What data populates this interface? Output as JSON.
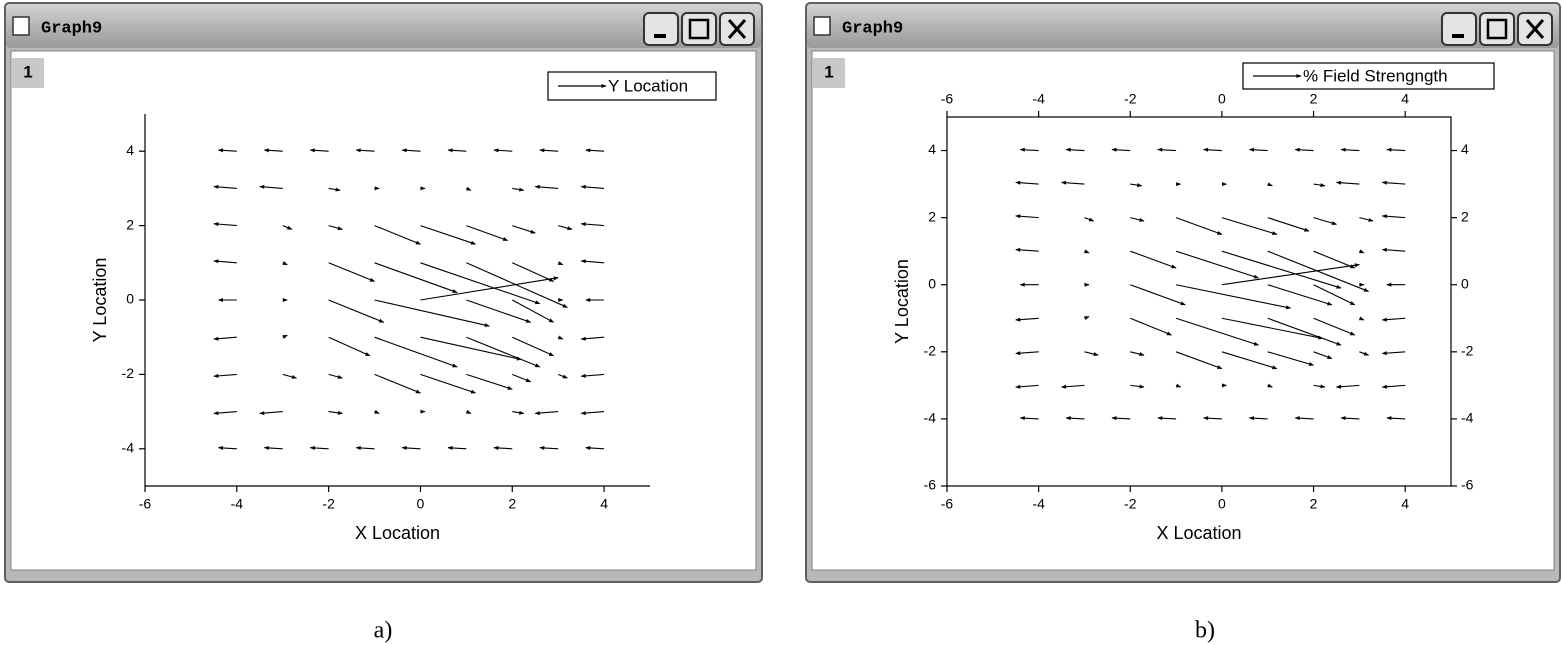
{
  "windows": [
    {
      "title": "Graph9",
      "layer": "1",
      "caption": "a)"
    },
    {
      "title": "Graph9",
      "layer": "1",
      "caption": "b)"
    }
  ],
  "chart_data": [
    {
      "type": "vector",
      "xlabel": "X Location",
      "ylabel": "Y Location",
      "legend": "Y Location",
      "frame": false,
      "xlim": [
        -6,
        5
      ],
      "ylim": [
        -5,
        5
      ],
      "xticks": [
        -6,
        -4,
        -2,
        0,
        2,
        4
      ],
      "yticks": [
        -4,
        -2,
        0,
        2,
        4
      ],
      "vectors": [
        [
          -4,
          4,
          -0.4,
          0.03
        ],
        [
          -3,
          4,
          -0.4,
          0.03
        ],
        [
          -2,
          4,
          -0.4,
          0.03
        ],
        [
          -1,
          4,
          -0.4,
          0.03
        ],
        [
          0,
          4,
          -0.4,
          0.03
        ],
        [
          1,
          4,
          -0.4,
          0.03
        ],
        [
          2,
          4,
          -0.4,
          0.03
        ],
        [
          3,
          4,
          -0.4,
          0.03
        ],
        [
          4,
          4,
          -0.4,
          0.03
        ],
        [
          -4,
          3,
          -0.5,
          0.05
        ],
        [
          -3,
          3,
          -0.5,
          0.05
        ],
        [
          -2,
          3,
          0.25,
          -0.05
        ],
        [
          -1,
          3,
          0.1,
          0
        ],
        [
          0,
          3,
          0.1,
          0
        ],
        [
          1,
          3,
          0.1,
          -0.05
        ],
        [
          2,
          3,
          0.25,
          -0.05
        ],
        [
          3,
          3,
          -0.5,
          0.05
        ],
        [
          4,
          3,
          -0.5,
          0.05
        ],
        [
          -4,
          2,
          -0.5,
          0.05
        ],
        [
          -3,
          2,
          0.2,
          -0.1
        ],
        [
          -2,
          2,
          0.3,
          -0.1
        ],
        [
          -1,
          2,
          1,
          -0.5
        ],
        [
          0,
          2,
          1.2,
          -0.5
        ],
        [
          1,
          2,
          0.9,
          -0.4
        ],
        [
          2,
          2,
          0.5,
          -0.2
        ],
        [
          3,
          2,
          0.3,
          -0.1
        ],
        [
          4,
          2,
          -0.5,
          0.05
        ],
        [
          -4,
          1,
          -0.5,
          0.05
        ],
        [
          -3,
          1,
          0.1,
          -0.05
        ],
        [
          -2,
          1,
          1,
          -0.5
        ],
        [
          -1,
          1,
          1.8,
          -0.8
        ],
        [
          0,
          1,
          2.6,
          -1.1
        ],
        [
          1,
          1,
          2.2,
          -1.2
        ],
        [
          2,
          1,
          0.9,
          -0.5
        ],
        [
          3,
          1,
          0.1,
          -0.05
        ],
        [
          4,
          1,
          -0.5,
          0.05
        ],
        [
          -4,
          0,
          -0.4,
          0
        ],
        [
          -3,
          0,
          0.1,
          0
        ],
        [
          -2,
          0,
          1.2,
          -0.6
        ],
        [
          -1,
          0,
          2.5,
          -0.7
        ],
        [
          0,
          0,
          3,
          0.6
        ],
        [
          1,
          0,
          1.4,
          -0.6
        ],
        [
          2,
          0,
          0.9,
          -0.6
        ],
        [
          3,
          0,
          0.1,
          0
        ],
        [
          4,
          0,
          -0.4,
          0
        ],
        [
          -4,
          -1,
          -0.5,
          -0.05
        ],
        [
          -3,
          -1,
          0.1,
          0.05
        ],
        [
          -2,
          -1,
          0.9,
          -0.5
        ],
        [
          -1,
          -1,
          1.8,
          -0.8
        ],
        [
          0,
          -1,
          2.2,
          -0.6
        ],
        [
          1,
          -1,
          1.6,
          -0.8
        ],
        [
          2,
          -1,
          0.9,
          -0.5
        ],
        [
          3,
          -1,
          0.1,
          -0.05
        ],
        [
          4,
          -1,
          -0.5,
          -0.05
        ],
        [
          -4,
          -2,
          -0.5,
          -0.05
        ],
        [
          -3,
          -2,
          0.3,
          -0.1
        ],
        [
          -2,
          -2,
          0.3,
          -0.1
        ],
        [
          -1,
          -2,
          1,
          -0.5
        ],
        [
          0,
          -2,
          1.2,
          -0.5
        ],
        [
          1,
          -2,
          1,
          -0.4
        ],
        [
          2,
          -2,
          0.4,
          -0.2
        ],
        [
          3,
          -2,
          0.2,
          -0.1
        ],
        [
          4,
          -2,
          -0.5,
          -0.05
        ],
        [
          -4,
          -3,
          -0.5,
          -0.05
        ],
        [
          -3,
          -3,
          -0.5,
          -0.05
        ],
        [
          -2,
          -3,
          0.3,
          -0.05
        ],
        [
          -1,
          -3,
          0.1,
          -0.05
        ],
        [
          0,
          -3,
          0.1,
          0
        ],
        [
          1,
          -3,
          0.1,
          -0.05
        ],
        [
          2,
          -3,
          0.25,
          -0.05
        ],
        [
          3,
          -3,
          -0.5,
          -0.05
        ],
        [
          4,
          -3,
          -0.5,
          -0.05
        ],
        [
          -4,
          -4,
          -0.4,
          0.03
        ],
        [
          -3,
          -4,
          -0.4,
          0.03
        ],
        [
          -2,
          -4,
          -0.4,
          0.03
        ],
        [
          -1,
          -4,
          -0.4,
          0.03
        ],
        [
          0,
          -4,
          -0.4,
          0.03
        ],
        [
          1,
          -4,
          -0.4,
          0.03
        ],
        [
          2,
          -4,
          -0.4,
          0.03
        ],
        [
          3,
          -4,
          -0.4,
          0.03
        ],
        [
          4,
          -4,
          -0.4,
          0.03
        ]
      ]
    },
    {
      "type": "vector",
      "xlabel": "X Location",
      "ylabel": "Y Location",
      "legend": "%  Field Strengngth",
      "frame": true,
      "xlim": [
        -6,
        5
      ],
      "ylim": [
        -6,
        5
      ],
      "xticks": [
        -6,
        -4,
        -2,
        0,
        2,
        4
      ],
      "yticks": [
        -6,
        -4,
        -2,
        0,
        2,
        4
      ],
      "vectors": [
        [
          -4,
          4,
          -0.4,
          0.03
        ],
        [
          -3,
          4,
          -0.4,
          0.03
        ],
        [
          -2,
          4,
          -0.4,
          0.03
        ],
        [
          -1,
          4,
          -0.4,
          0.03
        ],
        [
          0,
          4,
          -0.4,
          0.03
        ],
        [
          1,
          4,
          -0.4,
          0.03
        ],
        [
          2,
          4,
          -0.4,
          0.03
        ],
        [
          3,
          4,
          -0.4,
          0.03
        ],
        [
          4,
          4,
          -0.4,
          0.03
        ],
        [
          -4,
          3,
          -0.5,
          0.05
        ],
        [
          -3,
          3,
          -0.5,
          0.05
        ],
        [
          -2,
          3,
          0.25,
          -0.05
        ],
        [
          -1,
          3,
          0.1,
          0
        ],
        [
          0,
          3,
          0.1,
          0
        ],
        [
          1,
          3,
          0.1,
          -0.05
        ],
        [
          2,
          3,
          0.25,
          -0.05
        ],
        [
          3,
          3,
          -0.5,
          0.05
        ],
        [
          4,
          3,
          -0.5,
          0.05
        ],
        [
          -4,
          2,
          -0.5,
          0.05
        ],
        [
          -3,
          2,
          0.2,
          -0.1
        ],
        [
          -2,
          2,
          0.3,
          -0.1
        ],
        [
          -1,
          2,
          1,
          -0.5
        ],
        [
          0,
          2,
          1.2,
          -0.5
        ],
        [
          1,
          2,
          0.9,
          -0.4
        ],
        [
          2,
          2,
          0.5,
          -0.2
        ],
        [
          3,
          2,
          0.3,
          -0.1
        ],
        [
          4,
          2,
          -0.5,
          0.05
        ],
        [
          -4,
          1,
          -0.5,
          0.05
        ],
        [
          -3,
          1,
          0.1,
          -0.05
        ],
        [
          -2,
          1,
          1,
          -0.5
        ],
        [
          -1,
          1,
          1.8,
          -0.8
        ],
        [
          0,
          1,
          2.6,
          -1.1
        ],
        [
          1,
          1,
          2.2,
          -1.2
        ],
        [
          2,
          1,
          0.9,
          -0.5
        ],
        [
          3,
          1,
          0.1,
          -0.05
        ],
        [
          4,
          1,
          -0.5,
          0.05
        ],
        [
          -4,
          0,
          -0.4,
          0
        ],
        [
          -3,
          0,
          0.1,
          0
        ],
        [
          -2,
          0,
          1.2,
          -0.6
        ],
        [
          -1,
          0,
          2.5,
          -0.7
        ],
        [
          0,
          0,
          3,
          0.6
        ],
        [
          1,
          0,
          1.4,
          -0.6
        ],
        [
          2,
          0,
          0.9,
          -0.6
        ],
        [
          3,
          0,
          0.1,
          0
        ],
        [
          4,
          0,
          -0.4,
          0
        ],
        [
          -4,
          -1,
          -0.5,
          -0.05
        ],
        [
          -3,
          -1,
          0.1,
          0.05
        ],
        [
          -2,
          -1,
          0.9,
          -0.5
        ],
        [
          -1,
          -1,
          1.8,
          -0.8
        ],
        [
          0,
          -1,
          2.2,
          -0.6
        ],
        [
          1,
          -1,
          1.6,
          -0.8
        ],
        [
          2,
          -1,
          0.9,
          -0.5
        ],
        [
          3,
          -1,
          0.1,
          -0.05
        ],
        [
          4,
          -1,
          -0.5,
          -0.05
        ],
        [
          -4,
          -2,
          -0.5,
          -0.05
        ],
        [
          -3,
          -2,
          0.3,
          -0.1
        ],
        [
          -2,
          -2,
          0.3,
          -0.1
        ],
        [
          -1,
          -2,
          1,
          -0.5
        ],
        [
          0,
          -2,
          1.2,
          -0.5
        ],
        [
          1,
          -2,
          1,
          -0.4
        ],
        [
          2,
          -2,
          0.4,
          -0.2
        ],
        [
          3,
          -2,
          0.2,
          -0.1
        ],
        [
          4,
          -2,
          -0.5,
          -0.05
        ],
        [
          -4,
          -3,
          -0.5,
          -0.05
        ],
        [
          -3,
          -3,
          -0.5,
          -0.05
        ],
        [
          -2,
          -3,
          0.3,
          -0.05
        ],
        [
          -1,
          -3,
          0.1,
          -0.05
        ],
        [
          0,
          -3,
          0.1,
          0
        ],
        [
          1,
          -3,
          0.1,
          -0.05
        ],
        [
          2,
          -3,
          0.25,
          -0.05
        ],
        [
          3,
          -3,
          -0.5,
          -0.05
        ],
        [
          4,
          -3,
          -0.5,
          -0.05
        ],
        [
          -4,
          -4,
          -0.4,
          0.03
        ],
        [
          -3,
          -4,
          -0.4,
          0.03
        ],
        [
          -2,
          -4,
          -0.4,
          0.03
        ],
        [
          -1,
          -4,
          -0.4,
          0.03
        ],
        [
          0,
          -4,
          -0.4,
          0.03
        ],
        [
          1,
          -4,
          -0.4,
          0.03
        ],
        [
          2,
          -4,
          -0.4,
          0.03
        ],
        [
          3,
          -4,
          -0.4,
          0.03
        ],
        [
          4,
          -4,
          -0.4,
          0.03
        ]
      ]
    }
  ]
}
